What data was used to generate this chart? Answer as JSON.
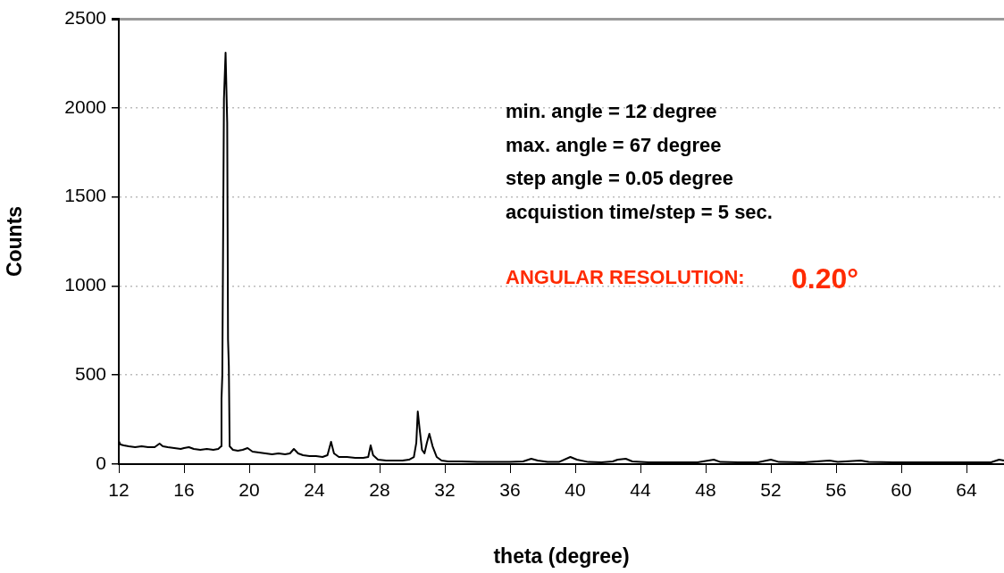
{
  "chart_data": {
    "type": "line",
    "xlabel": "theta (degree)",
    "ylabel": "Counts",
    "x": [
      12,
      12.1,
      12.3,
      12.6,
      13,
      13.4,
      13.8,
      14.2,
      14.5,
      14.7,
      15,
      15.4,
      15.8,
      16,
      16.3,
      16.6,
      17,
      17.4,
      17.8,
      18.1,
      18.28,
      18.3,
      18.35,
      18.45,
      18.55,
      18.65,
      18.7,
      18.75,
      18.8,
      19,
      19.3,
      19.6,
      19.9,
      20.2,
      20.6,
      21,
      21.4,
      21.8,
      22.2,
      22.5,
      22.74,
      23,
      23.3,
      23.7,
      24.1,
      24.5,
      24.8,
      25.02,
      25.2,
      25.5,
      26,
      26.5,
      27,
      27.3,
      27.45,
      27.6,
      27.9,
      28.4,
      28.9,
      29.4,
      29.8,
      30.1,
      30.25,
      30.34,
      30.45,
      30.6,
      30.75,
      30.9,
      31.05,
      31.25,
      31.5,
      31.8,
      32.2,
      33,
      34,
      35,
      36,
      36.8,
      37.3,
      37.7,
      38.3,
      39,
      39.7,
      40.1,
      40.8,
      41.6,
      42.3,
      42.6,
      43.1,
      43.5,
      44.5,
      46,
      47.5,
      48.5,
      48.9,
      50,
      51.2,
      52,
      52.5,
      54,
      55.6,
      56.1,
      57.5,
      58,
      59.5,
      61,
      62.5,
      64,
      65.5,
      66,
      66.3
    ],
    "values": [
      130,
      110,
      105,
      100,
      95,
      100,
      95,
      95,
      115,
      100,
      95,
      90,
      85,
      90,
      95,
      85,
      80,
      85,
      80,
      85,
      100,
      365,
      500,
      2050,
      2310,
      1915,
      700,
      550,
      100,
      80,
      75,
      80,
      90,
      70,
      65,
      60,
      55,
      60,
      55,
      60,
      85,
      60,
      50,
      45,
      45,
      40,
      50,
      125,
      60,
      40,
      40,
      35,
      35,
      40,
      105,
      50,
      25,
      20,
      20,
      20,
      25,
      40,
      120,
      295,
      200,
      80,
      60,
      120,
      170,
      100,
      40,
      20,
      15,
      15,
      12,
      12,
      12,
      15,
      30,
      20,
      12,
      12,
      40,
      25,
      12,
      10,
      15,
      25,
      30,
      15,
      10,
      10,
      10,
      25,
      12,
      10,
      10,
      25,
      12,
      10,
      20,
      12,
      20,
      12,
      10,
      10,
      10,
      10,
      10,
      25,
      20
    ],
    "color": "#000000",
    "xlim": [
      12,
      66.3
    ],
    "xticks": [
      12,
      16,
      20,
      24,
      28,
      32,
      36,
      40,
      44,
      48,
      52,
      56,
      60,
      64
    ],
    "ylim": [
      0,
      2500
    ],
    "yticks": [
      0,
      500,
      1000,
      1500,
      2000,
      2500
    ],
    "grid": "y",
    "legend": false,
    "marker": "none",
    "line_style": "solid",
    "annotations": [
      "min. angle = 12 degree",
      "max. angle = 67 degree",
      "step angle = 0.05 degree",
      "acquistion time/step = 5 sec.",
      "ANGULAR RESOLUTION:",
      "0.20°"
    ]
  }
}
